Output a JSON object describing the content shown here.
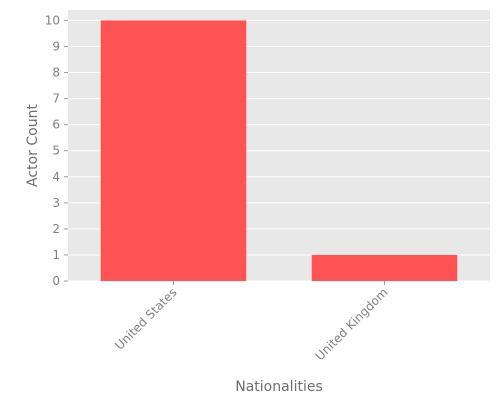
{
  "chart_data": {
    "type": "bar",
    "title": "",
    "xlabel": "Nationalities",
    "ylabel": "Actor Count",
    "categories": [
      "United States",
      "United Kingdom"
    ],
    "values": [
      10,
      1
    ],
    "ylim": [
      0,
      10.4
    ],
    "yticks": [
      0,
      1,
      2,
      3,
      4,
      5,
      6,
      7,
      8,
      9,
      10
    ],
    "grid": true,
    "legend": "none",
    "colors": {
      "bar": "#ff5254",
      "plot_background": "#e8e8e8",
      "grid": "#ffffff",
      "text": "#808080"
    }
  }
}
